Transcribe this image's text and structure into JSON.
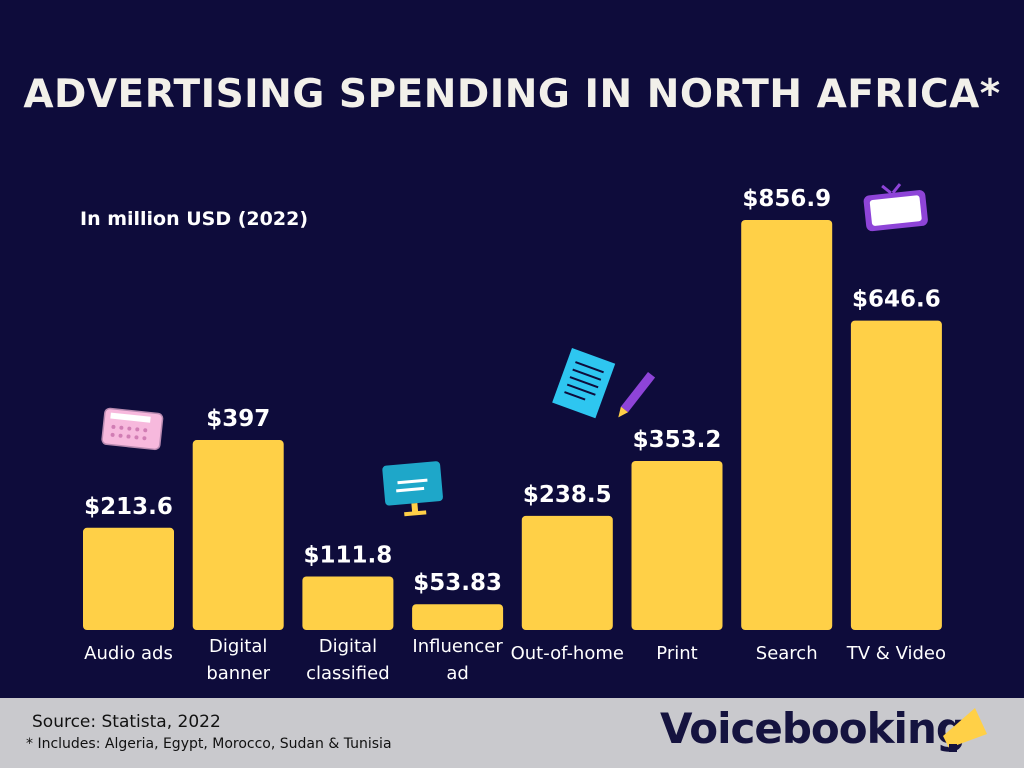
{
  "chart_data": {
    "type": "bar",
    "title": "ADVERTISING SPENDING IN NORTH AFRICA*",
    "subtitle": "In million USD (2022)",
    "categories": [
      "Audio ads",
      "Digital banner",
      "Digital classified",
      "Influencer ad",
      "Out-of-home",
      "Print",
      "Search",
      "TV & Video"
    ],
    "category_lines": [
      [
        "Audio ads"
      ],
      [
        "Digital",
        "banner"
      ],
      [
        "Digital",
        "classified"
      ],
      [
        "Influencer",
        "ad"
      ],
      [
        "Out-of-home"
      ],
      [
        "Print"
      ],
      [
        "Search"
      ],
      [
        "TV & Video"
      ]
    ],
    "values": [
      213.6,
      397,
      111.8,
      53.83,
      238.5,
      353.2,
      856.9,
      646.6
    ],
    "data_labels": [
      "$213.6",
      "$397",
      "$111.8",
      "$53.83",
      "$238.5",
      "$353.2",
      "$856.9",
      "$646.6"
    ],
    "ylim": [
      0,
      856.9
    ],
    "grid": false,
    "colors": {
      "bar": "#ffd047",
      "background": "#0e0c3b",
      "label": "#ffffff"
    }
  },
  "footer": {
    "source": "Source: Statista, 2022",
    "note": "* Includes: Algeria, Egypt, Morocco, Sudan & Tunisia",
    "logo": "Voicebooking"
  },
  "icons": [
    "radio-icon",
    "monitor-icon",
    "notepad-pencil-icon",
    "tv-icon",
    "megaphone-icon"
  ]
}
